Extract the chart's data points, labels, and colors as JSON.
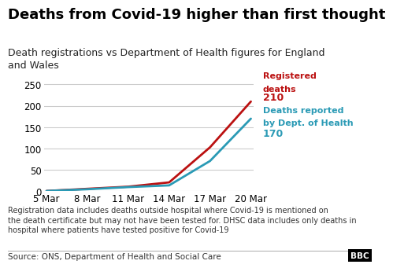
{
  "title": "Deaths from Covid-19 higher than first thought",
  "subtitle": "Death registrations vs Department of Health figures for England\nand Wales",
  "x_labels": [
    "5 Mar",
    "8 Mar",
    "11 Mar",
    "14 Mar",
    "17 Mar",
    "20 Mar"
  ],
  "x_values": [
    0,
    3,
    6,
    9,
    12,
    15
  ],
  "registered_deaths": [
    1,
    6,
    11,
    21,
    103,
    210
  ],
  "dept_health_deaths": [
    1,
    5,
    10,
    14,
    71,
    170
  ],
  "registered_color": "#bb1111",
  "dept_color": "#2a9ab5",
  "registered_label_line1": "Registered",
  "registered_label_line2": "deaths",
  "registered_value_label": "210",
  "dept_label_line1": "Deaths reported",
  "dept_label_line2": "by Dept. of Health",
  "dept_value_label": "170",
  "ylim": [
    0,
    260
  ],
  "yticks": [
    0,
    50,
    100,
    150,
    200,
    250
  ],
  "footnote": "Registration data includes deaths outside hospital where Covid-19 is mentioned on\nthe death certificate but may not have been tested for. DHSC data includes only deaths in\nhospital where patients have tested positive for Covid-19",
  "source": "Source: ONS, Department of Health and Social Care",
  "background_color": "#ffffff",
  "grid_color": "#cccccc",
  "title_fontsize": 13,
  "subtitle_fontsize": 9,
  "axis_fontsize": 8.5,
  "annotation_fontsize": 8,
  "annotation_value_fontsize": 9,
  "footnote_fontsize": 7,
  "source_fontsize": 7.5
}
